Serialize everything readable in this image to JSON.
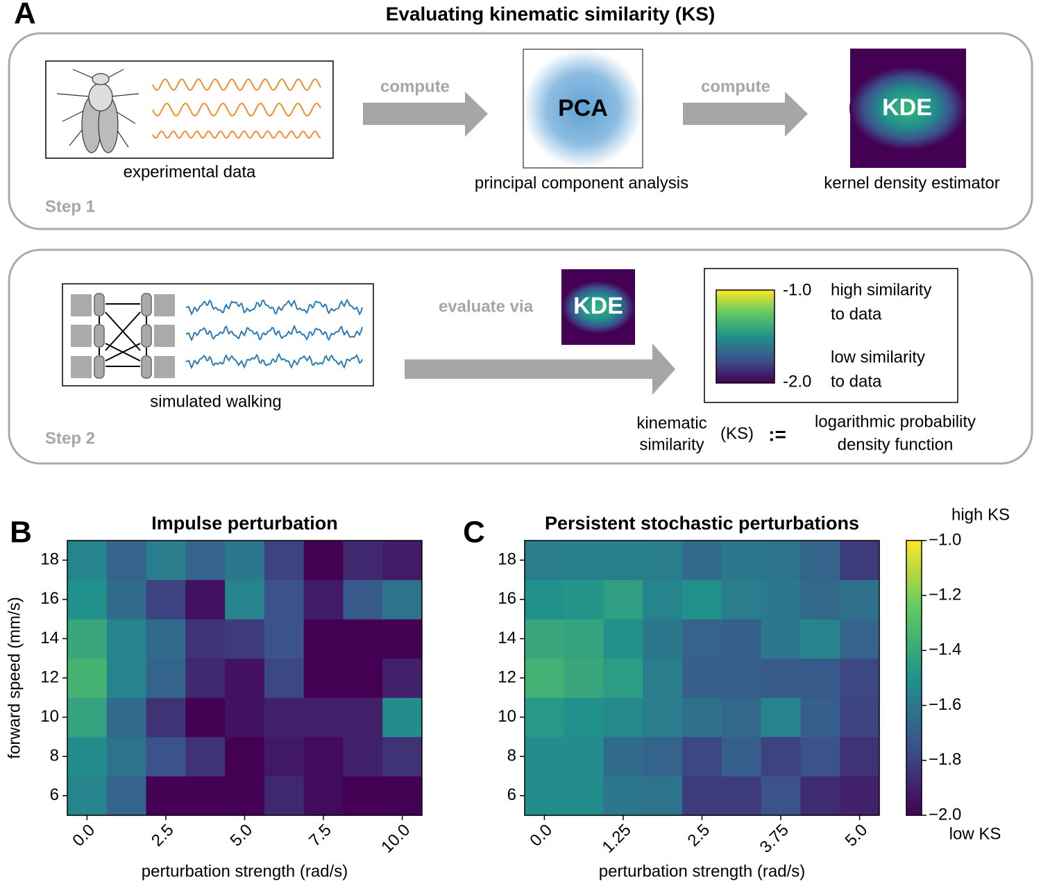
{
  "panel_labels": [
    "A",
    "B",
    "C"
  ],
  "diagram": {
    "title": "Evaluating kinematic similarity (KS)",
    "step1": {
      "label": "Step 1",
      "experimental": "experimental data",
      "compute": [
        "compute",
        "compute"
      ],
      "pca": "PCA",
      "pca_caption": "principal component analysis",
      "kde": "KDE",
      "kde_caption": "kernel density estimator"
    },
    "step2": {
      "label": "Step 2",
      "simulated": "simulated walking",
      "evaluate": "evaluate via",
      "kde": "KDE",
      "legend": {
        "top": "-1.0",
        "bottom": "-2.0",
        "high": [
          "high similarity",
          "to data"
        ],
        "low": [
          "low similarity",
          "to data"
        ]
      },
      "definition": {
        "lhs": [
          "kinematic",
          "similarity"
        ],
        "abbr": "(KS)",
        "op": ":=",
        "rhs": [
          "logarithmic probability",
          "density function"
        ]
      }
    }
  },
  "chart_data": [
    {
      "type": "heatmap",
      "title": "Impulse perturbation",
      "xlabel": "perturbation strength (rad/s)",
      "ylabel": "forward speed (mm/s)",
      "x": [
        0,
        1.25,
        2.5,
        3.75,
        5,
        6.25,
        7.5,
        8.75,
        10
      ],
      "y": [
        6,
        8,
        10,
        12,
        14,
        16,
        18
      ],
      "z": [
        [
          -1.55,
          -1.68,
          -2.0,
          -2.0,
          -2.0,
          -1.88,
          -1.97,
          -2.0,
          -2.0
        ],
        [
          -1.52,
          -1.62,
          -1.75,
          -1.85,
          -2.0,
          -1.93,
          -1.97,
          -1.9,
          -1.85
        ],
        [
          -1.42,
          -1.65,
          -1.85,
          -2.0,
          -1.95,
          -1.9,
          -1.9,
          -1.9,
          -1.52
        ],
        [
          -1.35,
          -1.55,
          -1.68,
          -1.88,
          -1.95,
          -1.78,
          -2.0,
          -2.0,
          -1.9
        ],
        [
          -1.4,
          -1.55,
          -1.65,
          -1.85,
          -1.82,
          -1.75,
          -2.0,
          -2.0,
          -2.0
        ],
        [
          -1.5,
          -1.65,
          -1.8,
          -1.95,
          -1.55,
          -1.75,
          -1.92,
          -1.72,
          -1.62
        ],
        [
          -1.55,
          -1.68,
          -1.58,
          -1.68,
          -1.6,
          -1.8,
          -2.0,
          -1.88,
          -1.92
        ]
      ],
      "xlim": [
        -0.625,
        10.625
      ],
      "ylim": [
        5,
        19
      ],
      "xticks": [
        {
          "value": 0,
          "label": "0.0"
        },
        2.5,
        {
          "value": 5,
          "label": "5.0"
        },
        7.5,
        {
          "value": 10,
          "label": "10.0"
        }
      ],
      "yticks": [
        6,
        8,
        10,
        12,
        14,
        16,
        18
      ],
      "colormap": "viridis",
      "zlim": [
        -2,
        -1
      ]
    },
    {
      "type": "heatmap",
      "title": "Persistent stochastic perturbations",
      "xlabel": "perturbation strength (rad/s)",
      "x": [
        0,
        0.625,
        1.25,
        1.875,
        2.5,
        3.125,
        3.75,
        4.375,
        5
      ],
      "y": [
        6,
        8,
        10,
        12,
        14,
        16,
        18
      ],
      "z": [
        [
          -1.52,
          -1.52,
          -1.6,
          -1.62,
          -1.82,
          -1.82,
          -1.75,
          -1.87,
          -1.9
        ],
        [
          -1.52,
          -1.52,
          -1.65,
          -1.68,
          -1.78,
          -1.7,
          -1.8,
          -1.75,
          -1.85
        ],
        [
          -1.47,
          -1.5,
          -1.53,
          -1.58,
          -1.63,
          -1.66,
          -1.55,
          -1.7,
          -1.8
        ],
        [
          -1.36,
          -1.4,
          -1.45,
          -1.58,
          -1.7,
          -1.7,
          -1.72,
          -1.72,
          -1.78
        ],
        [
          -1.4,
          -1.42,
          -1.5,
          -1.6,
          -1.68,
          -1.7,
          -1.6,
          -1.55,
          -1.68
        ],
        [
          -1.5,
          -1.48,
          -1.44,
          -1.55,
          -1.5,
          -1.58,
          -1.6,
          -1.66,
          -1.63
        ],
        [
          -1.58,
          -1.57,
          -1.57,
          -1.58,
          -1.65,
          -1.6,
          -1.62,
          -1.68,
          -1.82
        ]
      ],
      "xlim": [
        -0.3125,
        5.3125
      ],
      "ylim": [
        5,
        19
      ],
      "xticks": [
        {
          "value": 0,
          "label": "0.0"
        },
        1.25,
        2.5,
        3.75,
        {
          "value": 5,
          "label": "5.0"
        }
      ],
      "yticks": [
        6,
        8,
        10,
        12,
        14,
        16,
        18
      ],
      "colormap": "viridis",
      "zlim": [
        -2,
        -1
      ],
      "colorbar": {
        "lim": [
          -2,
          -1
        ],
        "ticks": [
          {
            "value": -1,
            "label": "−1.0"
          },
          {
            "value": -1.2,
            "label": "−1.2"
          },
          {
            "value": -1.4,
            "label": "−1.4"
          },
          {
            "value": -1.6,
            "label": "−1.6"
          },
          {
            "value": -1.8,
            "label": "−1.8"
          },
          {
            "value": -2,
            "label": "−2.0"
          }
        ],
        "top_label": "high KS",
        "bottom_label": "low KS"
      }
    }
  ]
}
